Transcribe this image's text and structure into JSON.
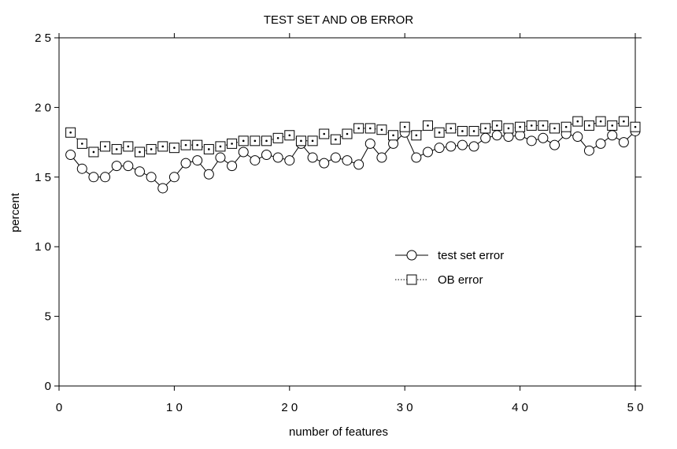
{
  "chart_data": {
    "type": "line",
    "title": "TEST SET AND OB ERROR",
    "xlabel": "number of features",
    "ylabel": "percent",
    "xlim": [
      0,
      50
    ],
    "ylim": [
      0,
      25
    ],
    "x_ticks": [
      {
        "value": 0,
        "label": "0"
      },
      {
        "value": 10,
        "label": "1 0"
      },
      {
        "value": 20,
        "label": "2 0"
      },
      {
        "value": 30,
        "label": "3 0"
      },
      {
        "value": 40,
        "label": "4 0"
      },
      {
        "value": 50,
        "label": "5 0"
      }
    ],
    "y_ticks": [
      {
        "value": 0,
        "label": "0"
      },
      {
        "value": 5,
        "label": "5"
      },
      {
        "value": 10,
        "label": "1 0"
      },
      {
        "value": 15,
        "label": "1 5"
      },
      {
        "value": 20,
        "label": "2 0"
      },
      {
        "value": 25,
        "label": "2 5"
      }
    ],
    "grid": false,
    "legend_position": "center-right",
    "x": [
      1,
      2,
      3,
      4,
      5,
      6,
      7,
      8,
      9,
      10,
      11,
      12,
      13,
      14,
      15,
      16,
      17,
      18,
      19,
      20,
      21,
      22,
      23,
      24,
      25,
      26,
      27,
      28,
      29,
      30,
      31,
      32,
      33,
      34,
      35,
      36,
      37,
      38,
      39,
      40,
      41,
      42,
      43,
      44,
      45,
      46,
      47,
      48,
      49,
      50
    ],
    "series": [
      {
        "name": "test set error",
        "marker": "circle",
        "line_style": "solid",
        "values": [
          16.6,
          15.6,
          15.0,
          15.0,
          15.8,
          15.8,
          15.4,
          15.0,
          14.2,
          15.0,
          16.0,
          16.2,
          15.2,
          16.4,
          15.8,
          16.8,
          16.2,
          16.6,
          16.4,
          16.2,
          17.4,
          16.4,
          16.0,
          16.4,
          16.2,
          15.9,
          17.4,
          16.4,
          17.4,
          18.2,
          16.4,
          16.8,
          17.1,
          17.2,
          17.3,
          17.2,
          17.8,
          18.0,
          17.9,
          18.0,
          17.6,
          17.8,
          17.3,
          18.1,
          17.9,
          16.9,
          17.4,
          18.0,
          17.5,
          18.3
        ]
      },
      {
        "name": "OB error",
        "marker": "square",
        "line_style": "dotted",
        "values": [
          18.2,
          17.4,
          16.8,
          17.2,
          17.0,
          17.2,
          16.8,
          17.0,
          17.2,
          17.1,
          17.3,
          17.3,
          17.0,
          17.2,
          17.4,
          17.6,
          17.6,
          17.6,
          17.8,
          18.0,
          17.6,
          17.6,
          18.1,
          17.7,
          18.1,
          18.5,
          18.5,
          18.4,
          18.0,
          18.6,
          18.0,
          18.7,
          18.2,
          18.5,
          18.3,
          18.3,
          18.5,
          18.7,
          18.5,
          18.6,
          18.7,
          18.7,
          18.5,
          18.6,
          19.0,
          18.7,
          19.0,
          18.7,
          19.0,
          18.6
        ]
      }
    ]
  }
}
